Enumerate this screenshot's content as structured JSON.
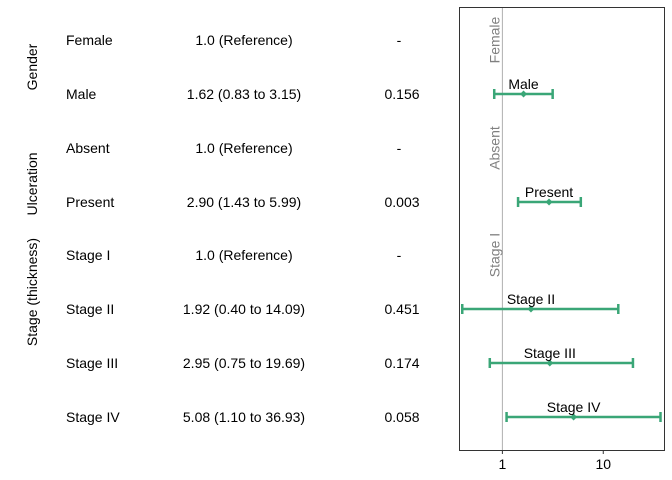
{
  "groups": [
    {
      "label": "Gender"
    },
    {
      "label": "Ulceration"
    },
    {
      "label": "Stage (thickness)"
    }
  ],
  "rows": [
    {
      "group": 0,
      "level": "Female",
      "estimate": "1.0 (Reference)",
      "p": "-"
    },
    {
      "group": 0,
      "level": "Male",
      "estimate": "1.62 (0.83 to 3.15)",
      "p": "0.156"
    },
    {
      "group": 1,
      "level": "Absent",
      "estimate": "1.0 (Reference)",
      "p": "-"
    },
    {
      "group": 1,
      "level": "Present",
      "estimate": "2.90 (1.43 to 5.99)",
      "p": "0.003"
    },
    {
      "group": 2,
      "level": "Stage I",
      "estimate": "1.0 (Reference)",
      "p": "-"
    },
    {
      "group": 2,
      "level": "Stage II",
      "estimate": "1.92 (0.40 to 14.09)",
      "p": "0.451"
    },
    {
      "group": 2,
      "level": "Stage III",
      "estimate": "2.95 (0.75 to 19.69)",
      "p": "0.174"
    },
    {
      "group": 2,
      "level": "Stage IV",
      "estimate": "5.08 (1.10 to 36.93)",
      "p": "0.058"
    }
  ],
  "chart_data": {
    "type": "scatter",
    "title": "",
    "xlabel": "",
    "ylabel": "",
    "x_scale": "log",
    "xlim": [
      0.38,
      40
    ],
    "x_ticks": [
      1,
      10
    ],
    "x_tick_labels": [
      "1",
      "10"
    ],
    "reference_line": 1,
    "colors": {
      "point": "#3aa677",
      "reference_line": "#b0b0b0",
      "reference_text": "#808080",
      "frame": "#333333"
    },
    "points": [
      {
        "label": "Female",
        "hr": 1.0,
        "lo": null,
        "hi": null,
        "reference": true
      },
      {
        "label": "Male",
        "hr": 1.62,
        "lo": 0.83,
        "hi": 3.15,
        "reference": false
      },
      {
        "label": "Absent",
        "hr": 1.0,
        "lo": null,
        "hi": null,
        "reference": true
      },
      {
        "label": "Present",
        "hr": 2.9,
        "lo": 1.43,
        "hi": 5.99,
        "reference": false
      },
      {
        "label": "Stage I",
        "hr": 1.0,
        "lo": null,
        "hi": null,
        "reference": true
      },
      {
        "label": "Stage II",
        "hr": 1.92,
        "lo": 0.4,
        "hi": 14.09,
        "reference": false
      },
      {
        "label": "Stage III",
        "hr": 2.95,
        "lo": 0.75,
        "hi": 19.69,
        "reference": false
      },
      {
        "label": "Stage IV",
        "hr": 5.08,
        "lo": 1.1,
        "hi": 36.93,
        "reference": false
      }
    ]
  }
}
